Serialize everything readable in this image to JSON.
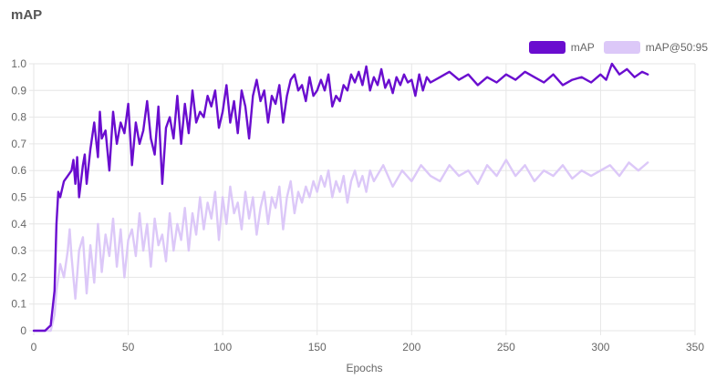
{
  "title": "mAP",
  "colors": {
    "map": "#6A0DCF",
    "map5095": "#DCC8F8",
    "grid": "#E6E6E6",
    "tick": "#666666"
  },
  "chart_data": {
    "type": "line",
    "title": "mAP",
    "xlabel": "Epochs",
    "ylabel": "",
    "xlim": [
      0,
      350
    ],
    "ylim": [
      0,
      1.0
    ],
    "x_ticks": [
      "0",
      "50",
      "100",
      "150",
      "200",
      "250",
      "300",
      "350"
    ],
    "y_ticks": [
      "0",
      "0.1",
      "0.2",
      "0.3",
      "0.4",
      "0.5",
      "0.6",
      "0.7",
      "0.8",
      "0.9",
      "1.0"
    ],
    "grid": true,
    "legend_position": "top-right",
    "series": [
      {
        "name": "mAP",
        "x": [
          0,
          6,
          9,
          11,
          12,
          13,
          14,
          16,
          18,
          20,
          21,
          22,
          23,
          24,
          26,
          27,
          28,
          30,
          32,
          34,
          35,
          36,
          38,
          40,
          42,
          44,
          46,
          48,
          50,
          52,
          54,
          56,
          58,
          60,
          62,
          64,
          66,
          68,
          70,
          72,
          74,
          76,
          78,
          80,
          82,
          84,
          86,
          88,
          90,
          92,
          94,
          96,
          98,
          100,
          102,
          104,
          106,
          108,
          110,
          112,
          114,
          116,
          118,
          120,
          122,
          124,
          126,
          128,
          130,
          132,
          134,
          136,
          138,
          140,
          142,
          144,
          146,
          148,
          150,
          152,
          154,
          156,
          158,
          160,
          162,
          164,
          166,
          168,
          170,
          172,
          174,
          176,
          178,
          180,
          182,
          184,
          186,
          188,
          190,
          192,
          194,
          196,
          198,
          200,
          202,
          204,
          206,
          208,
          210,
          215,
          220,
          225,
          230,
          235,
          240,
          245,
          250,
          255,
          260,
          265,
          270,
          275,
          280,
          285,
          290,
          295,
          300,
          303,
          306,
          310,
          314,
          318,
          322,
          325
        ],
        "values": [
          0.0,
          0.0,
          0.02,
          0.15,
          0.4,
          0.52,
          0.5,
          0.56,
          0.58,
          0.6,
          0.64,
          0.55,
          0.65,
          0.5,
          0.62,
          0.66,
          0.55,
          0.68,
          0.78,
          0.65,
          0.82,
          0.72,
          0.75,
          0.6,
          0.82,
          0.7,
          0.78,
          0.74,
          0.85,
          0.62,
          0.78,
          0.7,
          0.75,
          0.86,
          0.72,
          0.66,
          0.84,
          0.55,
          0.76,
          0.8,
          0.72,
          0.88,
          0.7,
          0.85,
          0.74,
          0.9,
          0.78,
          0.82,
          0.8,
          0.88,
          0.84,
          0.9,
          0.76,
          0.82,
          0.92,
          0.78,
          0.86,
          0.74,
          0.9,
          0.84,
          0.72,
          0.88,
          0.94,
          0.86,
          0.9,
          0.78,
          0.88,
          0.85,
          0.92,
          0.78,
          0.88,
          0.94,
          0.96,
          0.9,
          0.92,
          0.86,
          0.95,
          0.88,
          0.9,
          0.94,
          0.9,
          0.96,
          0.84,
          0.88,
          0.86,
          0.92,
          0.9,
          0.96,
          0.93,
          0.97,
          0.92,
          0.99,
          0.9,
          0.95,
          0.92,
          0.98,
          0.91,
          0.94,
          0.89,
          0.95,
          0.92,
          0.96,
          0.93,
          0.94,
          0.88,
          0.96,
          0.9,
          0.95,
          0.93,
          0.95,
          0.97,
          0.94,
          0.96,
          0.92,
          0.95,
          0.93,
          0.96,
          0.94,
          0.97,
          0.95,
          0.93,
          0.96,
          0.92,
          0.94,
          0.95,
          0.93,
          0.96,
          0.94,
          1.0,
          0.96,
          0.98,
          0.95,
          0.97,
          0.96
        ]
      },
      {
        "name": "mAP@50:95",
        "x": [
          0,
          6,
          9,
          11,
          12,
          14,
          16,
          18,
          19,
          20,
          22,
          24,
          26,
          28,
          30,
          32,
          34,
          36,
          38,
          40,
          42,
          44,
          46,
          48,
          50,
          52,
          54,
          56,
          58,
          60,
          62,
          64,
          66,
          68,
          70,
          72,
          74,
          76,
          78,
          80,
          82,
          84,
          86,
          88,
          90,
          92,
          94,
          96,
          98,
          100,
          102,
          104,
          106,
          108,
          110,
          112,
          114,
          116,
          118,
          120,
          122,
          124,
          126,
          128,
          130,
          132,
          134,
          136,
          138,
          140,
          142,
          144,
          146,
          148,
          150,
          152,
          154,
          156,
          158,
          160,
          162,
          164,
          166,
          168,
          170,
          172,
          174,
          176,
          178,
          180,
          185,
          190,
          195,
          200,
          205,
          210,
          215,
          220,
          225,
          230,
          235,
          240,
          245,
          250,
          255,
          260,
          265,
          270,
          275,
          280,
          285,
          290,
          295,
          300,
          305,
          310,
          315,
          320,
          325
        ],
        "values": [
          0.0,
          0.0,
          0.0,
          0.06,
          0.15,
          0.25,
          0.2,
          0.3,
          0.38,
          0.28,
          0.12,
          0.3,
          0.35,
          0.14,
          0.32,
          0.18,
          0.4,
          0.22,
          0.36,
          0.28,
          0.42,
          0.24,
          0.38,
          0.2,
          0.34,
          0.38,
          0.28,
          0.44,
          0.3,
          0.4,
          0.24,
          0.42,
          0.32,
          0.36,
          0.26,
          0.44,
          0.3,
          0.4,
          0.34,
          0.46,
          0.3,
          0.44,
          0.36,
          0.5,
          0.38,
          0.48,
          0.42,
          0.52,
          0.34,
          0.5,
          0.4,
          0.54,
          0.44,
          0.48,
          0.38,
          0.52,
          0.42,
          0.5,
          0.36,
          0.46,
          0.52,
          0.4,
          0.5,
          0.46,
          0.54,
          0.38,
          0.5,
          0.56,
          0.44,
          0.52,
          0.48,
          0.54,
          0.5,
          0.56,
          0.52,
          0.58,
          0.54,
          0.6,
          0.5,
          0.56,
          0.52,
          0.58,
          0.48,
          0.56,
          0.6,
          0.54,
          0.58,
          0.52,
          0.6,
          0.56,
          0.62,
          0.54,
          0.6,
          0.56,
          0.62,
          0.58,
          0.56,
          0.62,
          0.58,
          0.6,
          0.55,
          0.62,
          0.58,
          0.64,
          0.58,
          0.62,
          0.56,
          0.6,
          0.58,
          0.62,
          0.57,
          0.6,
          0.58,
          0.6,
          0.62,
          0.58,
          0.63,
          0.6,
          0.63
        ]
      }
    ]
  }
}
